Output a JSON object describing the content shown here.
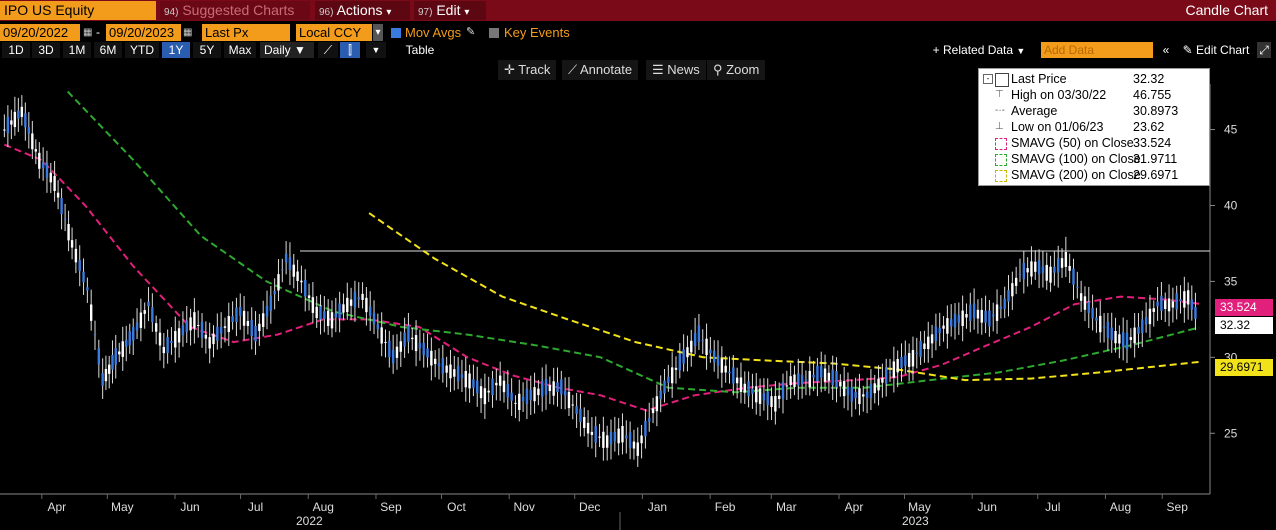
{
  "header": {
    "ticker": "IPO US Equity",
    "menu": [
      {
        "num": "94)",
        "label": "Suggested Charts"
      },
      {
        "num": "96)",
        "label": "Actions",
        "arrow": "▾"
      },
      {
        "num": "97)",
        "label": "Edit",
        "arrow": "▾"
      }
    ],
    "chart_title": "Candle Chart"
  },
  "controls": {
    "start_date": "09/20/2022",
    "dash": "-",
    "end_date": "09/20/2023",
    "price_field": "Last Px",
    "currency": "Local CCY",
    "mov_avgs_label": "Mov Avgs",
    "key_events_label": "Key Events",
    "periods": [
      "1D",
      "3D",
      "1M",
      "6M",
      "YTD",
      "1Y",
      "5Y",
      "Max"
    ],
    "selected_period": "1Y",
    "frequency": "Daily",
    "table_label": "Table",
    "related_data": "+ Related Data",
    "add_data_placeholder": "Add Data",
    "edit_chart": "Edit Chart"
  },
  "toolbar": {
    "track": "Track",
    "annotate": "Annotate",
    "news": "News",
    "zoom": "Zoom"
  },
  "legend": [
    {
      "label": "Last Price",
      "value": "32.32",
      "icon": "white-square-icon",
      "color": "#ffffff"
    },
    {
      "label": "High on 03/30/22",
      "value": "46.755",
      "icon": "high-marker-icon",
      "color": "#888888"
    },
    {
      "label": "Average",
      "value": "30.8973",
      "icon": "average-line-icon",
      "color": "#888888"
    },
    {
      "label": "Low on 01/06/23",
      "value": "23.62",
      "icon": "low-marker-icon",
      "color": "#888888"
    },
    {
      "label": "SMAVG (50)  on Close",
      "value": "33.524",
      "icon": "magenta-dashed-icon",
      "color": "#e0207a"
    },
    {
      "label": "SMAVG (100)  on Close",
      "value": "31.9711",
      "icon": "green-dashed-icon",
      "color": "#2ea82e"
    },
    {
      "label": "SMAVG (200)  on Close",
      "value": "29.6971",
      "icon": "yellow-dashed-icon",
      "color": "#f2e21a"
    }
  ],
  "right_tags": [
    {
      "value": "33.524",
      "bg": "#e0207a",
      "color": "#ffffff"
    },
    {
      "value": "32.32",
      "bg": "#ffffff",
      "color": "#000000"
    },
    {
      "value": "29.6971",
      "bg": "#f2e21a",
      "color": "#000000"
    }
  ],
  "chart_data": {
    "type": "line",
    "title": "",
    "ylim": [
      21,
      48
    ],
    "yticks": [
      25,
      30,
      35,
      40,
      45
    ],
    "x_month_labels": [
      "Apr",
      "May",
      "Jun",
      "Jul",
      "Aug",
      "Sep",
      "Oct",
      "Nov",
      "Dec",
      "Jan",
      "Feb",
      "Mar",
      "Apr",
      "May",
      "Jun",
      "Jul",
      "Aug",
      "Sep"
    ],
    "year_labels": [
      "2022",
      "2023"
    ],
    "high_line": 37.0,
    "series": [
      {
        "name": "Last Price",
        "color": "#3a7be0",
        "x": [
          "2022-03-22",
          "2022-03-30",
          "2022-04-07",
          "2022-04-14",
          "2022-04-22",
          "2022-04-29",
          "2022-05-06",
          "2022-05-12",
          "2022-05-20",
          "2022-05-27",
          "2022-06-03",
          "2022-06-10",
          "2022-06-17",
          "2022-06-24",
          "2022-07-01",
          "2022-07-08",
          "2022-07-15",
          "2022-07-22",
          "2022-07-29",
          "2022-08-05",
          "2022-08-12",
          "2022-08-19",
          "2022-08-26",
          "2022-09-02",
          "2022-09-09",
          "2022-09-16",
          "2022-09-23",
          "2022-09-30",
          "2022-10-07",
          "2022-10-14",
          "2022-10-21",
          "2022-10-28",
          "2022-11-04",
          "2022-11-11",
          "2022-11-18",
          "2022-11-25",
          "2022-12-02",
          "2022-12-09",
          "2022-12-16",
          "2022-12-23",
          "2022-12-30",
          "2023-01-06",
          "2023-01-13",
          "2023-01-20",
          "2023-01-27",
          "2023-02-03",
          "2023-02-10",
          "2023-02-17",
          "2023-02-24",
          "2023-03-03",
          "2023-03-10",
          "2023-03-17",
          "2023-03-24",
          "2023-03-31",
          "2023-04-07",
          "2023-04-14",
          "2023-04-21",
          "2023-04-28",
          "2023-05-05",
          "2023-05-12",
          "2023-05-19",
          "2023-05-26",
          "2023-06-02",
          "2023-06-09",
          "2023-06-16",
          "2023-06-23",
          "2023-06-30",
          "2023-07-07",
          "2023-07-14",
          "2023-07-21",
          "2023-07-28",
          "2023-08-04",
          "2023-08-11",
          "2023-08-18",
          "2023-08-25",
          "2023-09-01",
          "2023-09-08",
          "2023-09-15",
          "2023-09-20"
        ],
        "values": [
          45.0,
          46.2,
          43.0,
          41.5,
          37.5,
          34.5,
          28.5,
          30.0,
          31.5,
          33.5,
          30.5,
          31.5,
          32.5,
          31.0,
          32.0,
          33.0,
          31.5,
          33.5,
          36.5,
          35.0,
          33.0,
          32.5,
          33.5,
          34.0,
          32.0,
          30.0,
          31.5,
          30.5,
          29.5,
          29.0,
          28.5,
          27.5,
          28.5,
          27.0,
          27.5,
          28.0,
          28.0,
          26.5,
          25.0,
          24.5,
          25.0,
          24.0,
          26.5,
          28.5,
          30.0,
          31.5,
          30.0,
          29.0,
          28.0,
          27.5,
          27.0,
          28.5,
          28.5,
          29.0,
          28.5,
          27.5,
          27.5,
          28.5,
          29.5,
          30.0,
          31.0,
          32.0,
          32.5,
          33.0,
          32.5,
          33.5,
          35.5,
          36.0,
          35.5,
          36.5,
          34.0,
          32.5,
          31.5,
          31.0,
          32.0,
          33.5,
          33.5,
          34.0,
          32.32
        ]
      },
      {
        "name": "SMAVG (50)  on Close",
        "color": "#e0207a",
        "x": [
          "2022-03-22",
          "2022-04-08",
          "2022-04-28",
          "2022-05-20",
          "2022-06-15",
          "2022-07-05",
          "2022-07-25",
          "2022-08-15",
          "2022-09-05",
          "2022-09-28",
          "2022-10-20",
          "2022-11-10",
          "2022-12-01",
          "2022-12-20",
          "2023-01-10",
          "2023-02-01",
          "2023-02-25",
          "2023-03-20",
          "2023-04-15",
          "2023-05-05",
          "2023-05-25",
          "2023-06-15",
          "2023-07-05",
          "2023-07-25",
          "2023-08-15",
          "2023-09-05",
          "2023-09-20"
        ],
        "values": [
          44.0,
          43.0,
          40.0,
          36.0,
          32.0,
          31.0,
          31.5,
          32.5,
          32.5,
          32.0,
          30.0,
          28.8,
          28.0,
          27.5,
          26.5,
          27.5,
          28.0,
          28.3,
          28.5,
          28.7,
          29.5,
          30.8,
          32.0,
          33.5,
          34.0,
          33.8,
          33.524
        ]
      },
      {
        "name": "SMAVG (100)  on Close",
        "color": "#2ea82e",
        "x": [
          "2022-04-20",
          "2022-05-20",
          "2022-06-20",
          "2022-07-20",
          "2022-08-20",
          "2022-09-20",
          "2022-10-20",
          "2022-11-20",
          "2022-12-20",
          "2023-01-20",
          "2023-02-20",
          "2023-03-20",
          "2023-04-20",
          "2023-05-20",
          "2023-06-20",
          "2023-07-20",
          "2023-08-20",
          "2023-09-20"
        ],
        "values": [
          47.5,
          43.0,
          38.0,
          35.0,
          33.0,
          32.0,
          31.5,
          30.8,
          30.0,
          28.0,
          27.7,
          28.0,
          28.0,
          28.5,
          29.0,
          29.8,
          30.8,
          31.9711
        ]
      },
      {
        "name": "SMAVG (200)  on Close",
        "color": "#f2e21a",
        "x": [
          "2022-09-05",
          "2022-10-05",
          "2022-11-05",
          "2022-12-05",
          "2023-01-05",
          "2023-02-05",
          "2023-03-05",
          "2023-04-05",
          "2023-05-05",
          "2023-06-05",
          "2023-07-05",
          "2023-08-05",
          "2023-09-20"
        ],
        "values": [
          39.5,
          36.5,
          34.0,
          32.5,
          31.0,
          30.0,
          29.8,
          29.6,
          29.2,
          28.5,
          28.6,
          29.0,
          29.6971
        ]
      }
    ]
  }
}
